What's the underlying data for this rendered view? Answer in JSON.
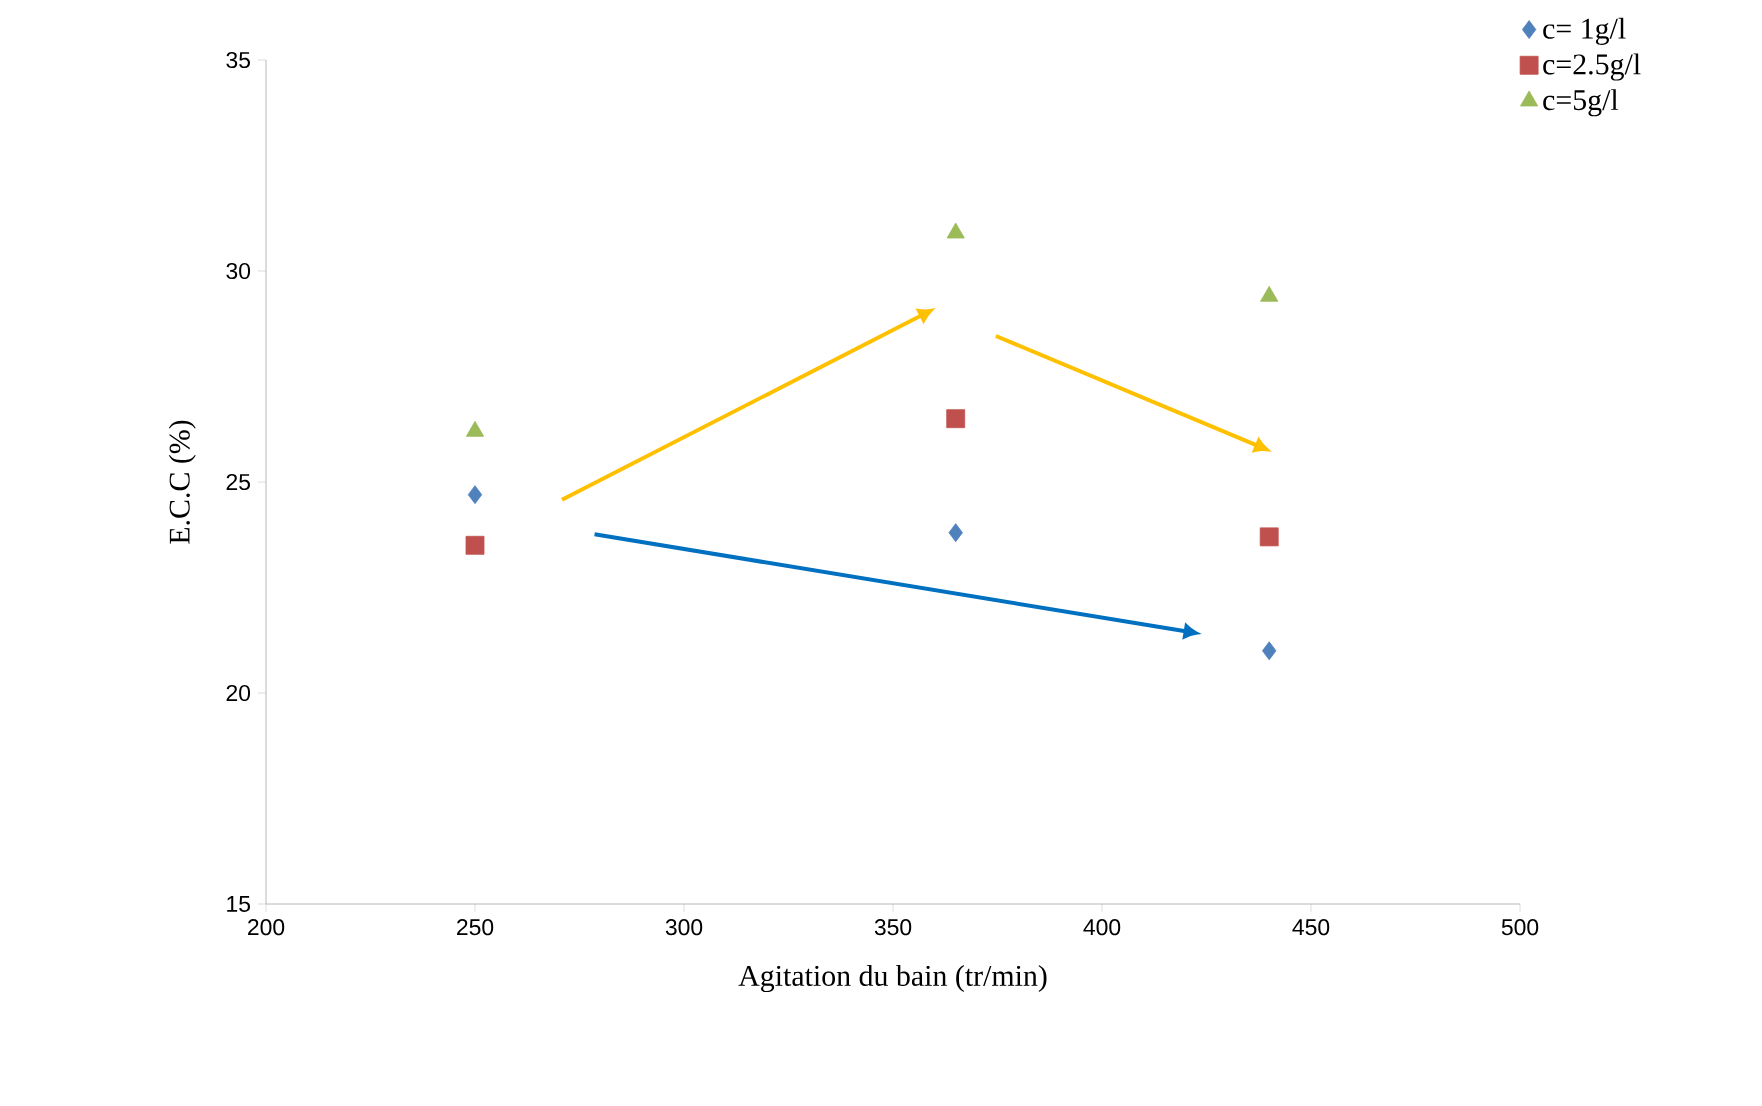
{
  "chart_data": {
    "type": "scatter",
    "xlabel": "Agitation du bain (tr/min)",
    "ylabel": "E.C.C (%)",
    "x": [
      250,
      365,
      440
    ],
    "series": [
      {
        "name": "c= 1g/l",
        "color": "#4f81bd",
        "marker": "diamond",
        "values": [
          24.7,
          23.8,
          21.0
        ]
      },
      {
        "name": "c=2.5g/l",
        "color": "#c0504d",
        "marker": "square",
        "values": [
          23.5,
          26.5,
          23.7
        ]
      },
      {
        "name": "c=5g/l",
        "color": "#9bbb59",
        "marker": "triangle",
        "values": [
          26.2,
          30.9,
          29.4
        ]
      }
    ],
    "xlim": [
      200,
      500
    ],
    "ylim": [
      15,
      35
    ],
    "xticks": [
      200,
      250,
      300,
      350,
      400,
      450,
      500
    ],
    "yticks": [
      15,
      20,
      25,
      30,
      35
    ],
    "grid": false,
    "legend": "top right"
  }
}
